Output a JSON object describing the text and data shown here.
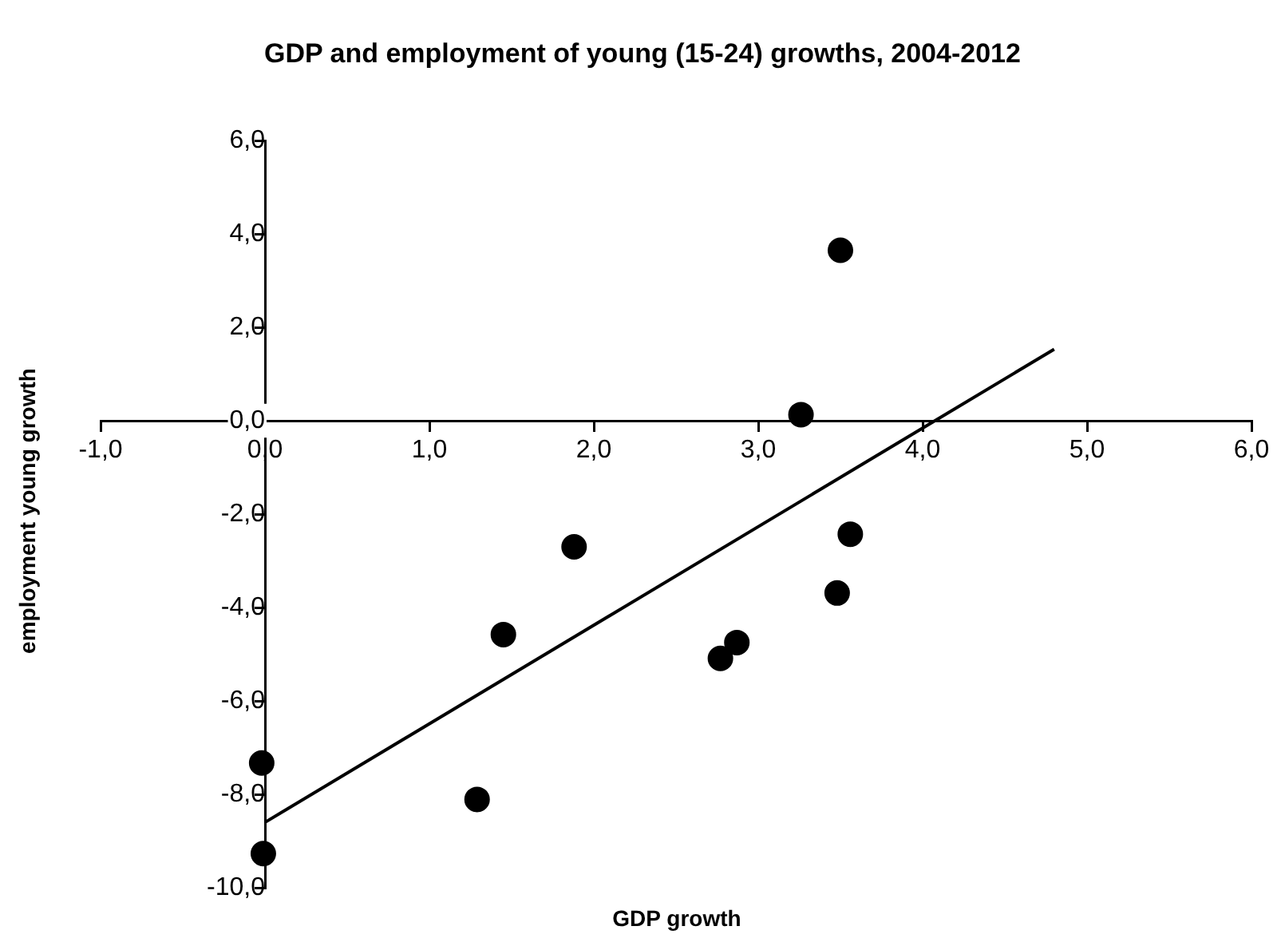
{
  "chart_data": {
    "type": "scatter",
    "title": "GDP and employment of young (15-24) growths, 2004-2012",
    "xlabel": "GDP growth",
    "ylabel": "employment young growth",
    "xlim": [
      -1,
      6
    ],
    "ylim": [
      -10,
      6
    ],
    "xticks": [
      {
        "value": -1,
        "label": "-1,0"
      },
      {
        "value": 0,
        "label": "0,0"
      },
      {
        "value": 1,
        "label": "1,0"
      },
      {
        "value": 2,
        "label": "2,0"
      },
      {
        "value": 3,
        "label": "3,0"
      },
      {
        "value": 4,
        "label": "4,0"
      },
      {
        "value": 5,
        "label": "5,0"
      },
      {
        "value": 6,
        "label": "6,0"
      }
    ],
    "yticks": [
      {
        "value": -10,
        "label": "-10,0"
      },
      {
        "value": -8,
        "label": "-8,0"
      },
      {
        "value": -6,
        "label": "-6,0"
      },
      {
        "value": -4,
        "label": "-4,0"
      },
      {
        "value": -2,
        "label": "-2,0"
      },
      {
        "value": 0,
        "label": "0,0"
      },
      {
        "value": 2,
        "label": "2,0"
      },
      {
        "value": 4,
        "label": "4,0"
      },
      {
        "value": 6,
        "label": "6,0"
      }
    ],
    "grid": false,
    "legend": false,
    "marker": "circle",
    "series": [
      {
        "type": "scatter",
        "color": "#000000",
        "x": [
          -0.02,
          -0.01,
          1.29,
          1.45,
          1.88,
          3.5,
          3.26,
          3.56,
          3.48,
          2.87,
          2.77
        ],
        "values": [
          -7.33,
          -9.27,
          -8.11,
          -4.58,
          -2.7,
          3.65,
          0.13,
          -2.43,
          -3.69,
          -4.75,
          -5.09
        ]
      },
      {
        "type": "line",
        "color": "#000000",
        "marker": "none",
        "x": [
          0,
          4.8
        ],
        "values": [
          -8.6,
          1.53
        ]
      }
    ]
  }
}
